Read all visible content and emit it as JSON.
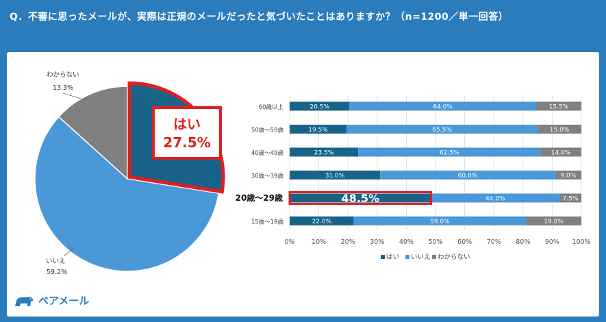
{
  "header": {
    "question": "Q．不審に思ったメールが、実際は正規のメールだったと気づいたことはありますか？（n=1200／単一回答）"
  },
  "colors": {
    "yes": "#19638a",
    "no": "#4b98d8",
    "unknown": "#808080",
    "highlight": "#e02020"
  },
  "pie": {
    "callout_label": "はい",
    "callout_value": "27.5%",
    "labels": [
      {
        "name": "わからない",
        "value": "13.3%"
      },
      {
        "name": "いいえ",
        "value": "59.2%"
      }
    ]
  },
  "brand": {
    "name": "ベアメール",
    "icon": "bear-icon"
  },
  "chart_data": [
    {
      "type": "pie",
      "categories": [
        "はい",
        "いいえ",
        "わからない"
      ],
      "values": [
        27.5,
        59.2,
        13.3
      ],
      "value_labels": [
        "27.5%",
        "59.2%",
        "13.3%"
      ]
    },
    {
      "type": "bar",
      "orientation": "horizontal-stacked-100",
      "categories": [
        "60歳以上",
        "50歳～59歳",
        "40歳～49歳",
        "30歳～39歳",
        "20歳～29歳",
        "15歳～19歳"
      ],
      "highlighted_category": "20歳～29歳",
      "series": [
        {
          "name": "はい",
          "values": [
            20.5,
            19.5,
            23.5,
            31.0,
            48.5,
            22.0
          ]
        },
        {
          "name": "いいえ",
          "values": [
            64.0,
            65.5,
            62.5,
            60.0,
            44.0,
            59.0
          ]
        },
        {
          "name": "わからない",
          "values": [
            15.5,
            15.0,
            14.0,
            9.0,
            7.5,
            19.0
          ]
        }
      ],
      "xlim": [
        0,
        100
      ],
      "x_ticks": [
        "0%",
        "10%",
        "20%",
        "30%",
        "40%",
        "50%",
        "60%",
        "70%",
        "80%",
        "90%",
        "100%"
      ],
      "grid": true,
      "legend": "bottom"
    }
  ]
}
